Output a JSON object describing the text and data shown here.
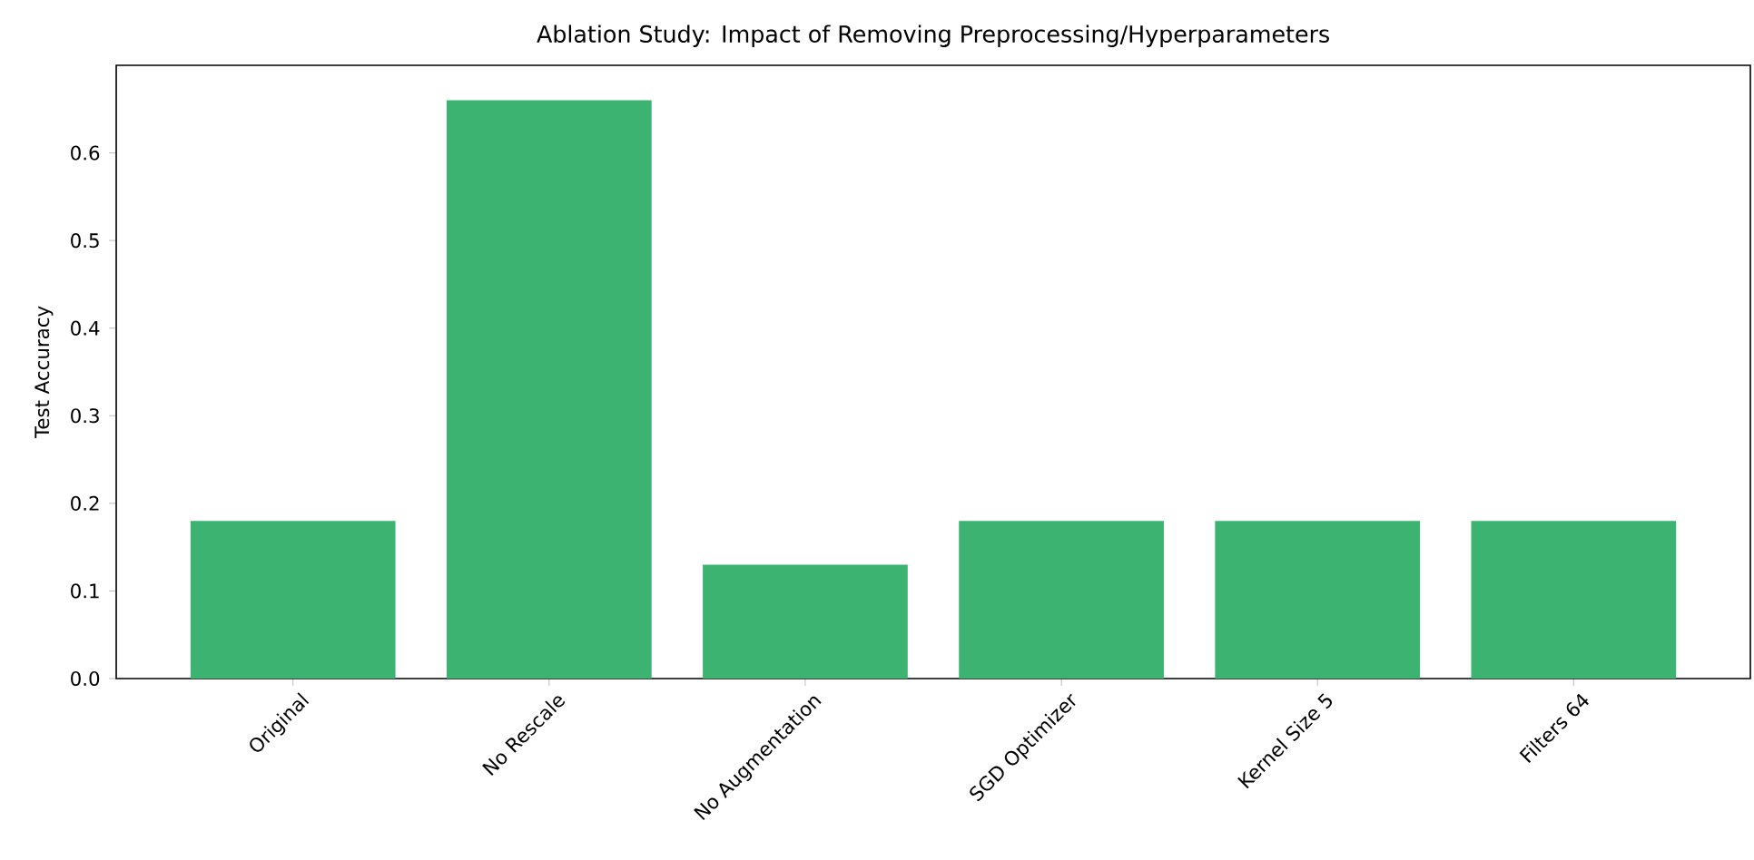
{
  "chart_data": {
    "type": "bar",
    "title": "Ablation Study: Impact of Removing Preprocessing/Hyperparameters",
    "ylabel": "Test Accuracy",
    "categories": [
      "Original",
      "No Rescale",
      "No Augmentation",
      "SGD Optimizer",
      "Kernel Size 5",
      "Filters 64"
    ],
    "values": [
      0.18,
      0.66,
      0.13,
      0.18,
      0.18,
      0.18
    ],
    "color": "#3cb371",
    "ylim": [
      0,
      0.7
    ],
    "yticks": [
      {
        "value": 0,
        "label": "0.0"
      },
      0.1,
      0.2,
      0.3,
      0.4,
      0.5,
      0.6
    ],
    "grid": false
  }
}
